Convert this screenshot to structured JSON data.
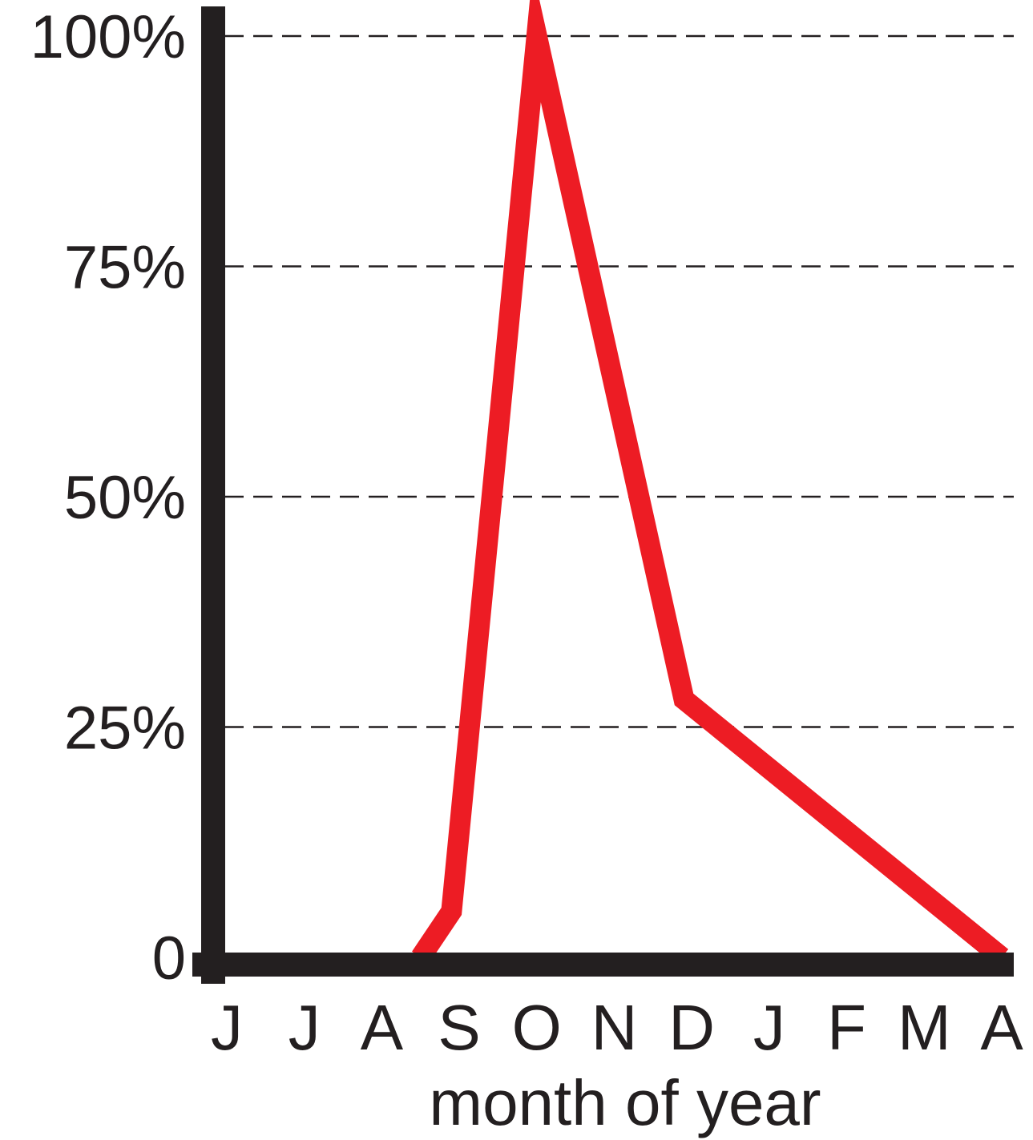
{
  "chart_data": {
    "type": "line",
    "title": "",
    "xlabel": "month of year",
    "ylabel": "",
    "categories": [
      "J",
      "J",
      "A",
      "S",
      "O",
      "N",
      "D",
      "J",
      "F",
      "M",
      "A"
    ],
    "y_ticks": [
      {
        "value": 0,
        "label": "0"
      },
      {
        "value": 25,
        "label": "25%"
      },
      {
        "value": 50,
        "label": "50%"
      },
      {
        "value": 75,
        "label": "75%"
      },
      {
        "value": 100,
        "label": "100%"
      }
    ],
    "ylim": [
      0,
      100
    ],
    "grid": "horizontal dashed",
    "series": [
      {
        "color": "#ed1c24",
        "points": [
          {
            "x": 2.5,
            "y": 0
          },
          {
            "x": 2.9,
            "y": 5
          },
          {
            "x": 4.0,
            "y": 100
          },
          {
            "x": 5.9,
            "y": 28
          },
          {
            "x": 10.0,
            "y": 0
          }
        ]
      }
    ],
    "axis_color": "#231f20"
  }
}
